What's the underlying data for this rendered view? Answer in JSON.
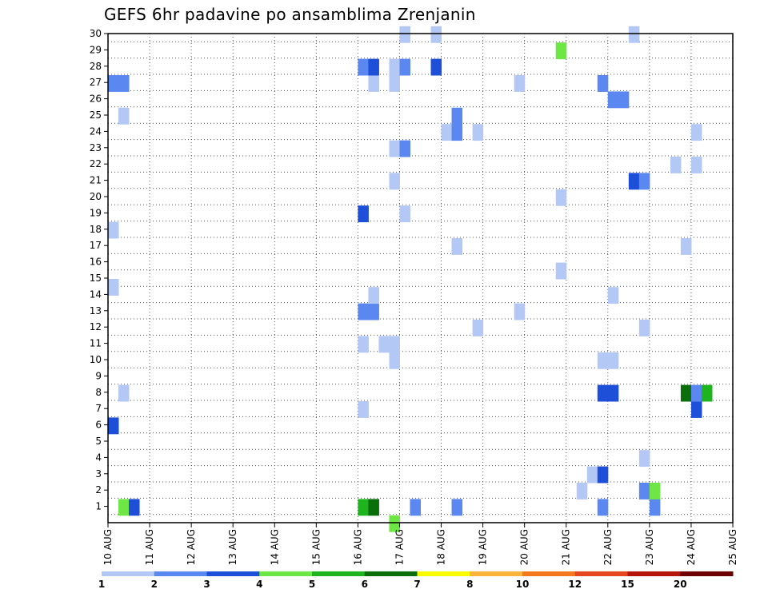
{
  "chart_data": {
    "type": "heatmap",
    "title": "GEFS 6hr padavine po ansamblima Zrenjanin",
    "xlabel": "",
    "ylabel": "",
    "x_tick_labels": [
      "10 AUG",
      "11 AUG",
      "12 AUG",
      "13 AUG",
      "14 AUG",
      "15 AUG",
      "16 AUG",
      "17 AUG",
      "18 AUG",
      "19 AUG",
      "20 AUG",
      "21 AUG",
      "22 AUG",
      "23 AUG",
      "24 AUG",
      "25 AUG"
    ],
    "y_tick_labels": [
      "1",
      "2",
      "3",
      "4",
      "5",
      "6",
      "7",
      "8",
      "9",
      "10",
      "11",
      "12",
      "13",
      "14",
      "15",
      "16",
      "17",
      "18",
      "19",
      "20",
      "21",
      "22",
      "23",
      "24",
      "25",
      "26",
      "27",
      "28",
      "29",
      "30"
    ],
    "xlim": [
      0,
      15
    ],
    "ylim": [
      0,
      30
    ],
    "x_unit": "days after 10 AUG",
    "grid": true,
    "legend_placement": "bottom",
    "legend": {
      "labels": [
        "1",
        "2",
        "3",
        "4",
        "5",
        "6",
        "7",
        "8",
        "10",
        "12",
        "15",
        "20"
      ],
      "colors": [
        "#b4c8f5",
        "#5a87f0",
        "#1e4fd8",
        "#6ee646",
        "#1eb41e",
        "#0a6e0a",
        "#fafa00",
        "#fab43c",
        "#f5781e",
        "#e6461e",
        "#b4140a",
        "#6e0000"
      ]
    },
    "cells": [
      {
        "x": 0.25,
        "y": 0,
        "c": 3
      },
      {
        "x": 0.5,
        "y": 0,
        "c": 2
      },
      {
        "x": 6.0,
        "y": 0,
        "c": 4
      },
      {
        "x": 6.25,
        "y": 0,
        "c": 5
      },
      {
        "x": 6.75,
        "y": -1,
        "c": 3
      },
      {
        "x": 7.25,
        "y": 0,
        "c": 1
      },
      {
        "x": 8.25,
        "y": 0,
        "c": 1
      },
      {
        "x": 11.75,
        "y": 0,
        "c": 1
      },
      {
        "x": 13.0,
        "y": 0,
        "c": 1
      },
      {
        "x": 11.25,
        "y": 1,
        "c": 0
      },
      {
        "x": 12.75,
        "y": 1,
        "c": 1
      },
      {
        "x": 13.0,
        "y": 1,
        "c": 3
      },
      {
        "x": 11.5,
        "y": 2,
        "c": 0
      },
      {
        "x": 11.75,
        "y": 2,
        "c": 2
      },
      {
        "x": 12.75,
        "y": 3,
        "c": 0
      },
      {
        "x": 0.0,
        "y": 5,
        "c": 2
      },
      {
        "x": 6.0,
        "y": 6,
        "c": 0
      },
      {
        "x": 14.0,
        "y": 6,
        "c": 2
      },
      {
        "x": 0.25,
        "y": 7,
        "c": 0
      },
      {
        "x": 11.75,
        "y": 7,
        "c": 2
      },
      {
        "x": 12.0,
        "y": 7,
        "c": 2
      },
      {
        "x": 13.75,
        "y": 7,
        "c": 5
      },
      {
        "x": 14.0,
        "y": 7,
        "c": 1
      },
      {
        "x": 14.25,
        "y": 7,
        "c": 4
      },
      {
        "x": 6.75,
        "y": 9,
        "c": 0
      },
      {
        "x": 11.75,
        "y": 9,
        "c": 0
      },
      {
        "x": 12.0,
        "y": 9,
        "c": 0
      },
      {
        "x": 6.0,
        "y": 10,
        "c": 0
      },
      {
        "x": 6.5,
        "y": 10,
        "c": 0
      },
      {
        "x": 6.75,
        "y": 10,
        "c": 0
      },
      {
        "x": 8.75,
        "y": 11,
        "c": 0
      },
      {
        "x": 12.75,
        "y": 11,
        "c": 0
      },
      {
        "x": 6.0,
        "y": 12,
        "c": 1
      },
      {
        "x": 6.25,
        "y": 12,
        "c": 1
      },
      {
        "x": 9.75,
        "y": 12,
        "c": 0
      },
      {
        "x": 6.25,
        "y": 13,
        "c": 0
      },
      {
        "x": 12.0,
        "y": 13,
        "c": 0
      },
      {
        "x": 0.0,
        "y": 13.5,
        "c": 0
      },
      {
        "x": 10.75,
        "y": 14.5,
        "c": 0
      },
      {
        "x": 8.25,
        "y": 16,
        "c": 0
      },
      {
        "x": 13.75,
        "y": 16,
        "c": 0
      },
      {
        "x": 0.0,
        "y": 17,
        "c": 0
      },
      {
        "x": 6.0,
        "y": 18,
        "c": 2
      },
      {
        "x": 7.0,
        "y": 18,
        "c": 0
      },
      {
        "x": 10.75,
        "y": 19,
        "c": 0
      },
      {
        "x": 6.75,
        "y": 20,
        "c": 0
      },
      {
        "x": 12.5,
        "y": 20,
        "c": 2
      },
      {
        "x": 12.75,
        "y": 20,
        "c": 1
      },
      {
        "x": 13.5,
        "y": 21,
        "c": 0
      },
      {
        "x": 14.0,
        "y": 21,
        "c": 0
      },
      {
        "x": 6.75,
        "y": 22,
        "c": 0
      },
      {
        "x": 7.0,
        "y": 22,
        "c": 1
      },
      {
        "x": 8.0,
        "y": 23,
        "c": 0
      },
      {
        "x": 8.25,
        "y": 23,
        "c": 1
      },
      {
        "x": 8.75,
        "y": 23,
        "c": 0
      },
      {
        "x": 14.0,
        "y": 23,
        "c": 0
      },
      {
        "x": 0.25,
        "y": 24,
        "c": 0
      },
      {
        "x": 8.25,
        "y": 24,
        "c": 1
      },
      {
        "x": 12.0,
        "y": 25,
        "c": 1
      },
      {
        "x": 12.25,
        "y": 25,
        "c": 1
      },
      {
        "x": 0.0,
        "y": 26,
        "c": 1
      },
      {
        "x": 0.25,
        "y": 26,
        "c": 1
      },
      {
        "x": 6.25,
        "y": 26,
        "c": 0
      },
      {
        "x": 6.75,
        "y": 26,
        "c": 0
      },
      {
        "x": 9.75,
        "y": 26,
        "c": 0
      },
      {
        "x": 11.75,
        "y": 26,
        "c": 1
      },
      {
        "x": 6.0,
        "y": 27,
        "c": 1
      },
      {
        "x": 6.25,
        "y": 27,
        "c": 2
      },
      {
        "x": 6.75,
        "y": 27,
        "c": 0
      },
      {
        "x": 7.0,
        "y": 27,
        "c": 1
      },
      {
        "x": 7.75,
        "y": 27,
        "c": 2
      },
      {
        "x": 10.75,
        "y": 28,
        "c": 3
      },
      {
        "x": 7.0,
        "y": 29,
        "c": 0
      },
      {
        "x": 7.75,
        "y": 29,
        "c": 0
      },
      {
        "x": 12.5,
        "y": 29,
        "c": 0
      }
    ]
  }
}
